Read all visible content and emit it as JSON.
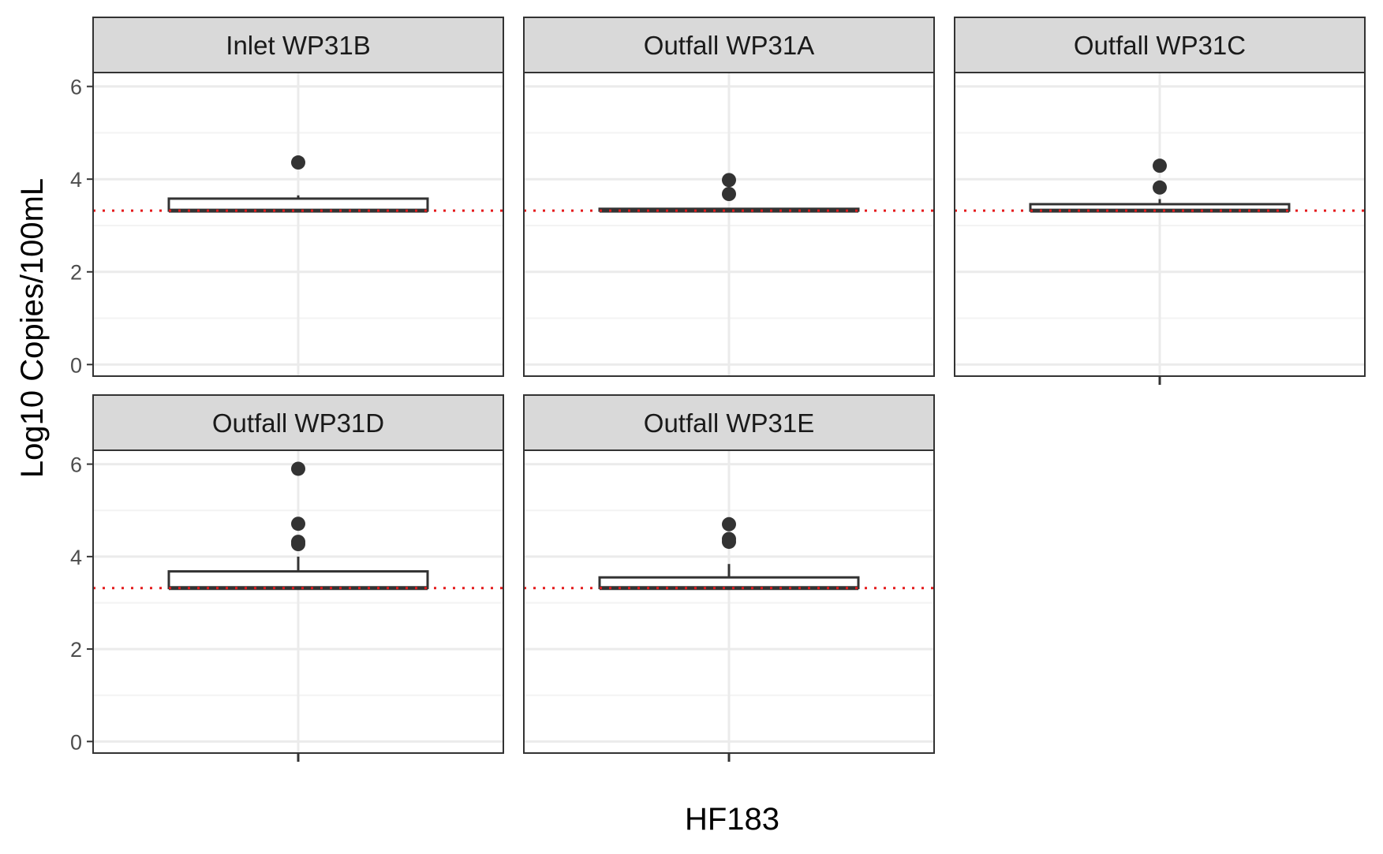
{
  "chart_data": {
    "type": "boxplot",
    "xlabel": "HF183",
    "ylabel": "Log10 Copies/100mL",
    "ylim": [
      -0.25,
      6.3
    ],
    "yticks": [
      0,
      2,
      4,
      6
    ],
    "ytick_labels": [
      "0",
      "2",
      "4",
      "6"
    ],
    "reference_line": {
      "y": 3.32,
      "style": "dotted",
      "color": "#e41a1c"
    },
    "grid": true,
    "facets": [
      {
        "title": "Inlet WP31B",
        "box": {
          "q1": 3.32,
          "median": 3.32,
          "q3": 3.58,
          "whisker_low": 3.32,
          "whisker_high": 3.65
        },
        "outliers": [
          4.36
        ]
      },
      {
        "title": "Outfall WP31A",
        "box": {
          "q1": 3.32,
          "median": 3.32,
          "q3": 3.36,
          "whisker_low": 3.32,
          "whisker_high": 3.36
        },
        "outliers": [
          3.98,
          3.68
        ]
      },
      {
        "title": "Outfall WP31C",
        "box": {
          "q1": 3.32,
          "median": 3.32,
          "q3": 3.46,
          "whisker_low": 3.32,
          "whisker_high": 3.57
        },
        "outliers": [
          4.29,
          3.82
        ]
      },
      {
        "title": "Outfall WP31D",
        "box": {
          "q1": 3.32,
          "median": 3.32,
          "q3": 3.68,
          "whisker_low": 3.32,
          "whisker_high": 4.0
        },
        "outliers": [
          5.9,
          4.71,
          4.32,
          4.27
        ]
      },
      {
        "title": "Outfall WP31E",
        "box": {
          "q1": 3.32,
          "median": 3.32,
          "q3": 3.55,
          "whisker_low": 3.32,
          "whisker_high": 3.84
        },
        "outliers": [
          4.7,
          4.38,
          4.32
        ]
      }
    ]
  },
  "colors": {
    "background": "#ffffff",
    "strip_fill": "#d9d9d9",
    "panel_border": "#333333",
    "grid_major": "#ebebeb",
    "grid_minor": "#f3f3f3",
    "box_line": "#333333",
    "point": "#333333",
    "reference_line": "#e41a1c"
  }
}
